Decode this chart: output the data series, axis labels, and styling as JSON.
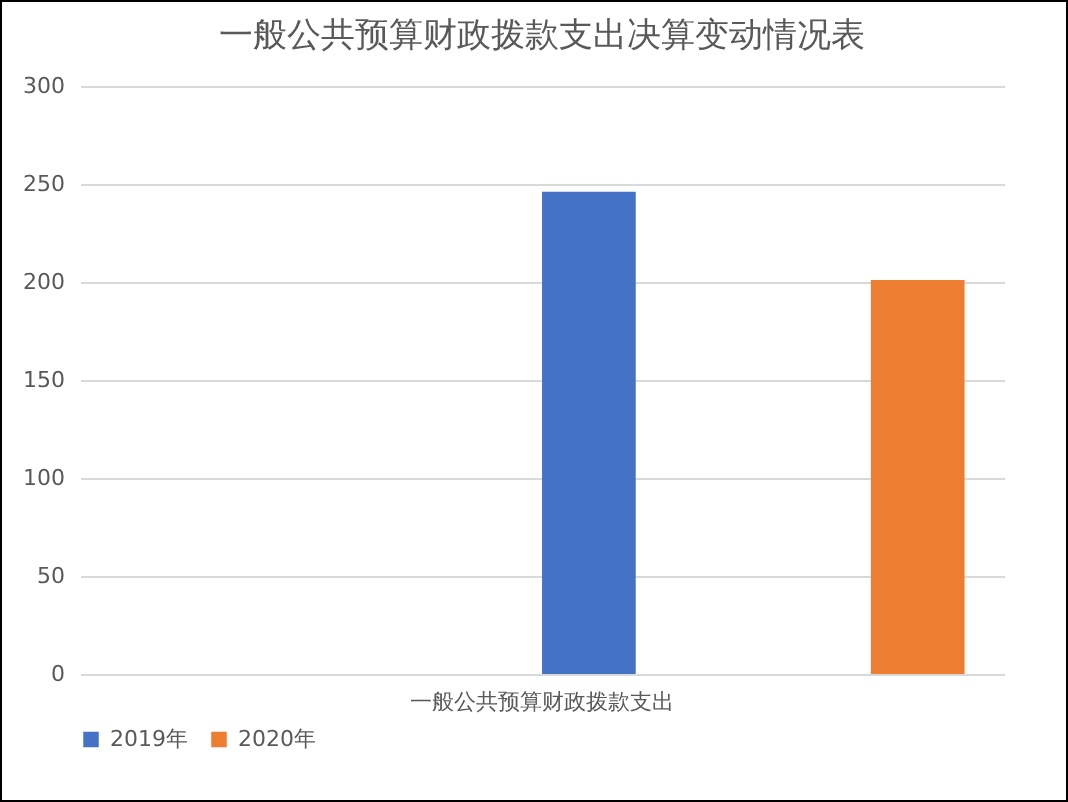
{
  "chart_data": {
    "type": "bar",
    "title": "一般公共预算财政拨款支出决算变动情况表",
    "categories": [
      "一般公共预算财政拨款支出"
    ],
    "series": [
      {
        "name": "2019年",
        "color": "#4472c4",
        "values": [
          246
        ]
      },
      {
        "name": "2020年",
        "color": "#ed7d31",
        "values": [
          201
        ]
      }
    ],
    "ylim": [
      0,
      300
    ],
    "yticks": [
      0,
      50,
      100,
      150,
      200,
      250,
      300
    ],
    "grid": "y",
    "legend": "bottom"
  }
}
